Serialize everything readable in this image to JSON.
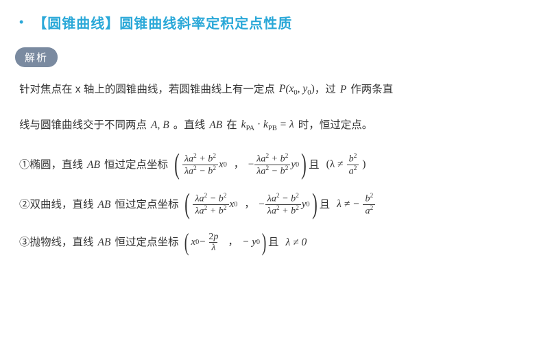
{
  "title": "【圆锥曲线】圆锥曲线斜率定积定点性质",
  "badge": "解析",
  "p1a": "针对焦点在 x 轴上的圆锥曲线，若圆锥曲线上有一定点",
  "p1_point": "P(x",
  "p1_point2": ", y",
  "p1_point3": ")",
  "p1b": "，过",
  "p1_P": "P",
  "p1c": "作两条直",
  "p2a": "线与圆锥曲线交于不同两点",
  "p2_AB": "A, B",
  "p2b": "。直线",
  "p2_AB2": "AB",
  "p2c": "在",
  "p2_k": "k",
  "p2_PA": "PA",
  "p2_dot": "·",
  "p2_PB": "PB",
  "p2_eq": " = λ",
  "p2d": "时，恒过定点。",
  "ellipse_label": "①椭圆，直线",
  "hyperbola_label": "②双曲线，直线",
  "parabola_label": "③抛物线，直线",
  "AB": "AB",
  "fixed_point_label": "恒过定点坐标",
  "and": "且",
  "sub0": "0",
  "subPA": "PA",
  "subPB": "PB",
  "frac_num1": "λa",
  "plus_b2": " + b",
  "minus_b2": " − b",
  "x0": "x",
  "y0": "y",
  "comma": "，",
  "neg": "−",
  "cond_ellipse_a": "(λ ≠ ",
  "cond_ellipse_b": ")",
  "b2": "b",
  "a2": "a",
  "cond_hyp": "λ ≠ −",
  "para_x0": "x",
  "para_minus": " − ",
  "two_p": "2p",
  "lambda": "λ",
  "neg_y0": "− y",
  "cond_para": "λ ≠ 0",
  "sq": "2"
}
